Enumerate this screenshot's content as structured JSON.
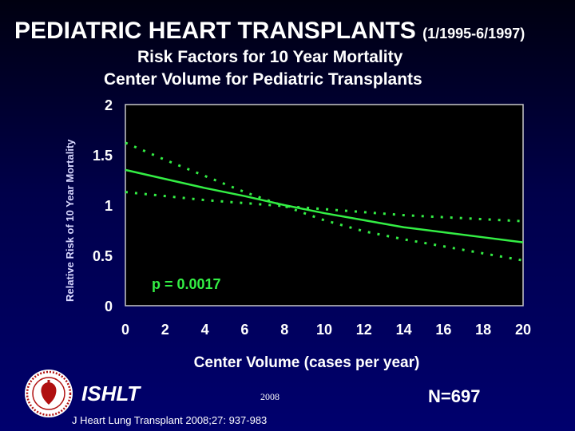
{
  "header": {
    "title_main": "PEDIATRIC HEART TRANSPLANTS",
    "title_dates": "(1/1995-6/1997)",
    "subtitle_line1": "Risk Factors for 10 Year Mortality",
    "subtitle_line2": "Center Volume for Pediatric Transplants"
  },
  "chart_data": {
    "type": "line",
    "xlabel": "Center Volume (cases per year)",
    "ylabel": "Relative Risk of 10 Year Mortality",
    "xlim": [
      0,
      20
    ],
    "ylim": [
      0,
      2
    ],
    "x_ticks": [
      "0",
      "2",
      "4",
      "6",
      "8",
      "10",
      "12",
      "14",
      "16",
      "18",
      "20"
    ],
    "y_ticks": [
      "2",
      "1.5",
      "1",
      "0.5",
      "0"
    ],
    "annotation": "p = 0.0017",
    "grid": false,
    "legend": "none",
    "series": [
      {
        "style": "solid",
        "color": "#33ee44",
        "x": [
          0,
          2,
          4,
          6,
          8,
          10,
          12,
          14,
          16,
          18,
          20
        ],
        "y": [
          1.35,
          1.26,
          1.17,
          1.09,
          1.0,
          0.92,
          0.85,
          0.78,
          0.73,
          0.68,
          0.63
        ]
      },
      {
        "style": "dotted",
        "color": "#33ee44",
        "x": [
          0,
          2,
          4,
          6,
          8,
          10,
          12,
          14,
          16,
          18,
          20
        ],
        "y": [
          1.62,
          1.45,
          1.29,
          1.13,
          0.99,
          0.85,
          0.74,
          0.66,
          0.59,
          0.52,
          0.45
        ]
      },
      {
        "style": "dotted",
        "color": "#33ee44",
        "x": [
          0,
          2,
          4,
          6,
          8,
          10,
          12,
          14,
          16,
          18,
          20
        ],
        "y": [
          1.13,
          1.09,
          1.05,
          1.02,
          0.99,
          0.96,
          0.93,
          0.9,
          0.88,
          0.86,
          0.84
        ]
      }
    ]
  },
  "footer": {
    "brand": "ISHLT",
    "year": "2008",
    "n_value": "N=697",
    "citation": "J Heart Lung Transplant 2008;27: 937-983"
  }
}
